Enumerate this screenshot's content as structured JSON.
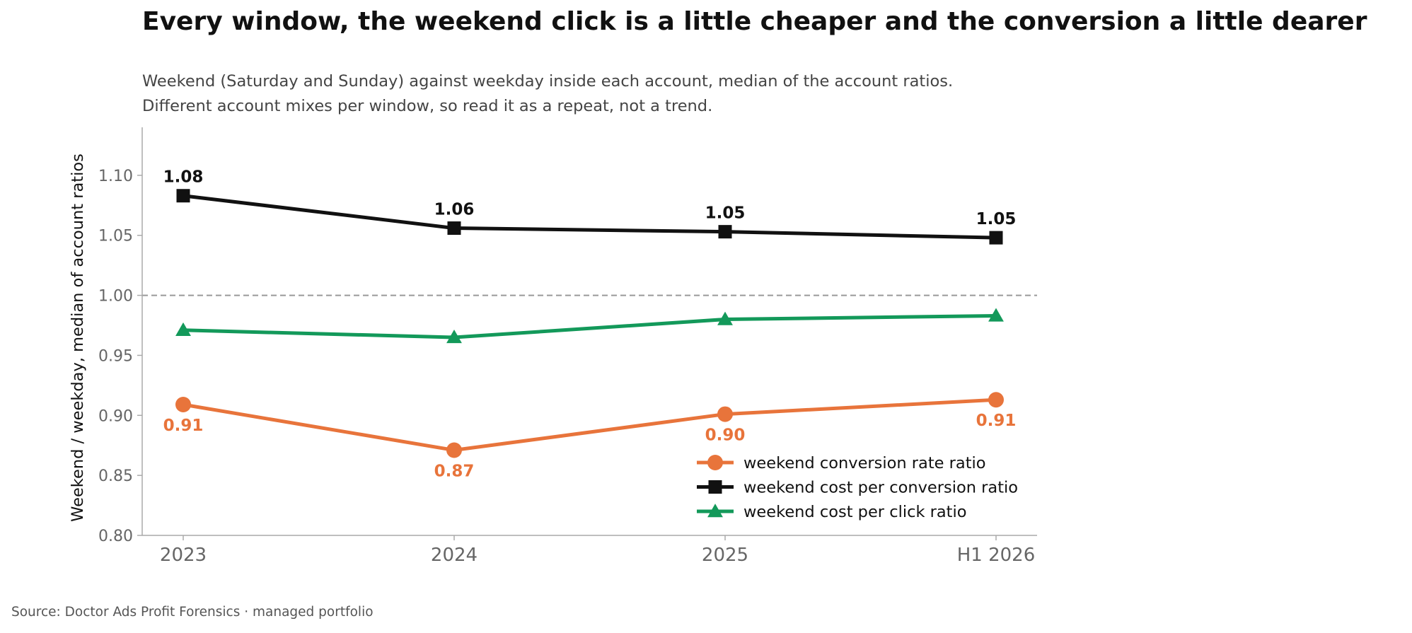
{
  "title": "Every window, the weekend click is a little cheaper and the conversion a little dearer",
  "subtitle_lines": [
    "Weekend (Saturday and Sunday) against weekday inside each account, median of the account ratios.",
    "Different account mixes per window, so read it as a repeat, not a trend."
  ],
  "source": "Source: Doctor Ads Profit Forensics · managed portfolio",
  "chart_data": {
    "type": "line",
    "categories": [
      "2023",
      "2024",
      "2025",
      "H1 2026"
    ],
    "ylabel": "Weekend / weekday, median of account ratios",
    "xlabel": "",
    "ylim": [
      0.8,
      1.14
    ],
    "yticks": [
      "0.80",
      "0.85",
      "0.90",
      "0.95",
      "1.00",
      "1.05",
      "1.10"
    ],
    "reference_line": 1.0,
    "grid": false,
    "legend_position": "lower-right",
    "series": [
      {
        "name": "weekend conversion rate ratio",
        "color": "#E8743B",
        "marker": "circle",
        "values": [
          0.909,
          0.871,
          0.901,
          0.913
        ],
        "labels": [
          "0.91",
          "0.87",
          "0.90",
          "0.91"
        ],
        "label_position": "below"
      },
      {
        "name": "weekend cost per conversion ratio",
        "color": "#111111",
        "marker": "square",
        "values": [
          1.083,
          1.056,
          1.053,
          1.048
        ],
        "labels": [
          "1.08",
          "1.06",
          "1.05",
          "1.05"
        ],
        "label_position": "above"
      },
      {
        "name": "weekend cost per click ratio",
        "color": "#13995A",
        "marker": "triangle",
        "values": [
          0.971,
          0.965,
          0.98,
          0.983
        ],
        "labels": [],
        "label_position": "none"
      }
    ]
  }
}
